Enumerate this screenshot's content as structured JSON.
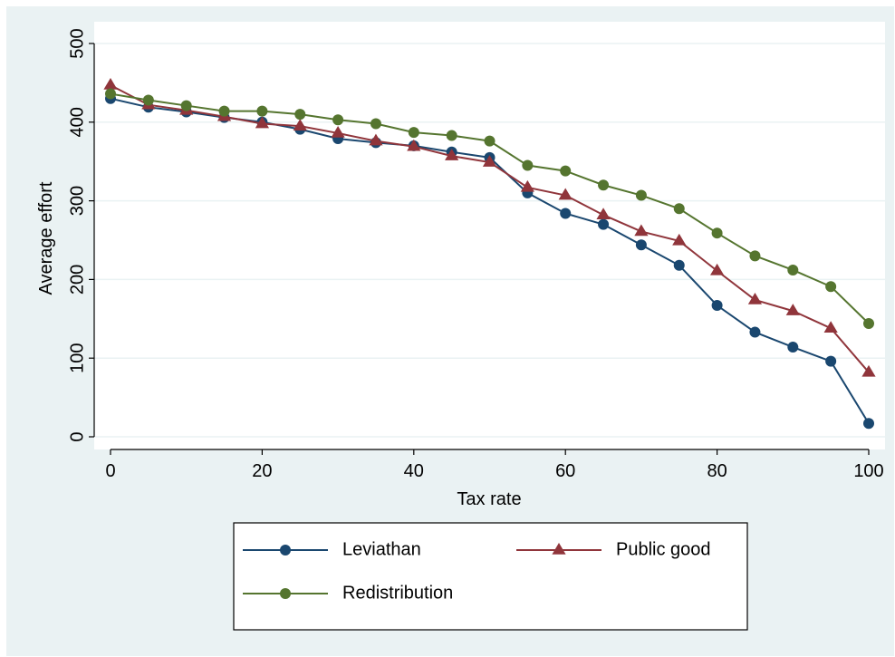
{
  "chart_data": {
    "type": "line",
    "title": "",
    "xlabel": "Tax rate",
    "ylabel": "Average effort",
    "xlim": [
      0,
      100
    ],
    "ylim": [
      0,
      500
    ],
    "x_ticks": [
      0,
      20,
      40,
      60,
      80,
      100
    ],
    "y_ticks": [
      0,
      100,
      200,
      300,
      400,
      500
    ],
    "grid": true,
    "legend_position": "bottom",
    "x": [
      0,
      5,
      10,
      15,
      20,
      25,
      30,
      35,
      40,
      45,
      50,
      55,
      60,
      65,
      70,
      75,
      80,
      85,
      90,
      95,
      100
    ],
    "series": [
      {
        "name": "Leviathan",
        "color": "#1a476f",
        "marker": "circle",
        "values": [
          430,
          419,
          413,
          406,
          400,
          391,
          379,
          374,
          370,
          362,
          355,
          310,
          284,
          270,
          244,
          218,
          167,
          133,
          114,
          96,
          17
        ]
      },
      {
        "name": "Public good",
        "color": "#90353b",
        "marker": "triangle",
        "values": [
          447,
          422,
          415,
          407,
          398,
          395,
          386,
          376,
          369,
          357,
          349,
          317,
          307,
          282,
          261,
          249,
          211,
          174,
          160,
          138,
          82
        ]
      },
      {
        "name": "Redistribution",
        "color": "#55752f",
        "marker": "circle",
        "values": [
          436,
          428,
          421,
          414,
          414,
          410,
          403,
          398,
          387,
          383,
          376,
          345,
          338,
          320,
          307,
          290,
          259,
          230,
          212,
          191,
          144
        ]
      }
    ]
  }
}
